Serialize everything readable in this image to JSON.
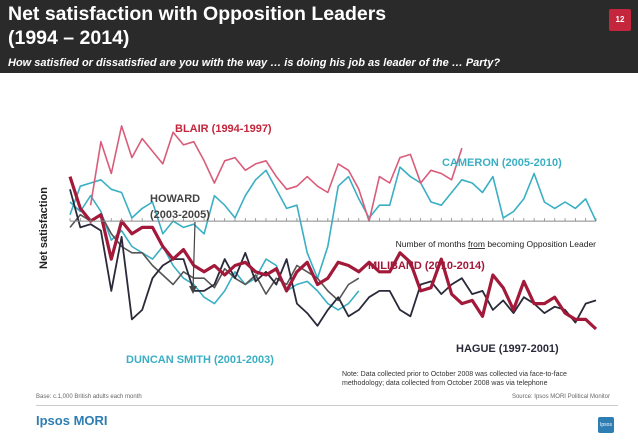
{
  "header": {
    "title_line1": "Net satisfaction with Opposition Leaders",
    "title_line2": "(1994 – 2014)",
    "page_number": "12",
    "subtitle": "How satisfied or dissatisfied are you with the way … is doing his job as leader of the … Party?"
  },
  "footer": {
    "base": "Base: c.1,000 British adults each month",
    "source": "Source: Ipsos MORI Political Monitor",
    "logo": "Ipsos MORI",
    "logo_badge": "Ipsos"
  },
  "colors": {
    "header_bg": "#2a2a2a",
    "accent": "#c4263b",
    "blair": "#d95c7a",
    "cameron": "#3aafc4",
    "howard": "#555555",
    "duncan_smith": "#3aafc4",
    "miliband": "#a21939",
    "hague": "#2a2a3a"
  },
  "chart_data": {
    "type": "line",
    "title": "",
    "xlabel": "Number of months from becoming Opposition Leader",
    "ylabel": "Net satisfaction",
    "xlim": [
      1,
      52
    ],
    "ylim": [
      -40,
      35
    ],
    "grid": false,
    "annotations": {
      "blair": "BLAIR (1994-1997)",
      "cameron": "CAMERON (2005-2010)",
      "howard_line1": "HOWARD",
      "howard_line2": "(2003-2005)",
      "miliband": "MILIBAND (2010-2014)",
      "hague": "HAGUE (1997-2001)",
      "duncan_smith": "DUNCAN SMITH (2001-2003)",
      "note_line1": "Note: Data collected prior to October 2008 was collected via face-to-face",
      "note_line2": "methodology; data collected from October 2008 was via telephone",
      "xlabel_part1": "Number of months ",
      "xlabel_part2": "from",
      "xlabel_part3": " becoming Opposition Leader"
    },
    "series": [
      {
        "name": "BLAIR (1994-1997)",
        "key": "blair",
        "x_start": 3,
        "values": [
          5,
          25,
          15,
          30,
          20,
          26,
          22,
          18,
          28,
          24,
          25,
          19,
          12,
          19,
          20,
          16,
          18,
          19,
          14,
          10,
          11,
          14,
          11,
          9,
          18,
          16,
          10,
          0,
          14,
          12,
          20,
          21,
          12,
          16,
          15,
          13,
          23
        ]
      },
      {
        "name": "CAMERON (2005-2010)",
        "key": "cameron",
        "x_start": 1,
        "values": [
          2,
          11,
          12,
          13,
          10,
          9,
          1,
          4,
          6,
          -4,
          0,
          -2,
          -1,
          -4,
          8,
          5,
          1,
          8,
          13,
          16,
          10,
          4,
          5,
          -10,
          -18,
          -8,
          11,
          14,
          7,
          1,
          5,
          5,
          17,
          14,
          12,
          6,
          5,
          9,
          13,
          12,
          9,
          14,
          1,
          3,
          7,
          15,
          6,
          4,
          6,
          4,
          7,
          0
        ]
      },
      {
        "name": "HOWARD (2003-2005)",
        "key": "howard",
        "x_start": 1,
        "values": [
          -2,
          2,
          0,
          2,
          -4,
          -8,
          -10,
          -10,
          -14,
          -17,
          -20,
          -16,
          -18,
          -18,
          -21,
          -15,
          -18,
          -20,
          -17,
          -23,
          -18,
          -20,
          -14,
          -16,
          -18,
          -22,
          -25,
          -20,
          -18
        ]
      },
      {
        "name": "DUNCAN SMITH (2001-2003)",
        "key": "duncan_smith",
        "x_start": 1,
        "values": [
          6,
          3,
          8,
          3,
          -6,
          -3,
          -8,
          -10,
          -12,
          -8,
          -14,
          -18,
          -20,
          -24,
          -26,
          -22,
          -16,
          -20,
          -18,
          -12,
          -14,
          -22,
          -20,
          -19,
          -22,
          -26,
          -28,
          -26,
          -22
        ]
      },
      {
        "name": "MILIBAND (2010-2014)",
        "key": "miliband",
        "x_start": 1,
        "values": [
          14,
          4,
          0,
          2,
          -12,
          0,
          -4,
          -2,
          -2,
          -8,
          -12,
          -9,
          -14,
          -16,
          -14,
          -17,
          -14,
          -13,
          -16,
          -17,
          -15,
          -22,
          -16,
          -13,
          -20,
          -18,
          -13,
          -14,
          -16,
          -13,
          -16,
          -16,
          -10,
          -13,
          -22,
          -21,
          -12,
          -23,
          -26,
          -25,
          -30,
          -17,
          -21,
          -28,
          -19,
          -26,
          -26,
          -24,
          -29,
          -31,
          -31,
          -34
        ]
      },
      {
        "name": "HAGUE (1997-2001)",
        "key": "hague",
        "x_start": 1,
        "values": [
          10,
          -2,
          -1,
          -3,
          -22,
          -5,
          -31,
          -28,
          -18,
          -14,
          -12,
          -12,
          -22,
          -22,
          -20,
          -12,
          -18,
          -10,
          -19,
          -16,
          -20,
          -12,
          -26,
          -29,
          -33,
          -28,
          -24,
          -30,
          -28,
          -24,
          -22,
          -22,
          -28,
          -30,
          -20,
          -19,
          -23,
          -20,
          -18,
          -23,
          -22,
          -28,
          -25,
          -29,
          -24,
          -26,
          -29,
          -27,
          -28,
          -32,
          -26,
          -25
        ]
      }
    ]
  }
}
